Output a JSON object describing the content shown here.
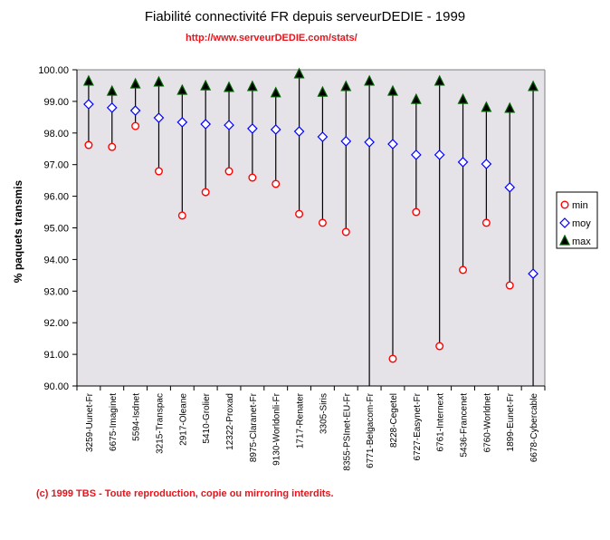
{
  "chart_data": {
    "type": "scatter",
    "title": "Fiabilité connectivité FR depuis serveurDEDIE - 1999",
    "subtitle": "http://www.serveurDEDIE.com/stats/",
    "footer": "(c) 1999 TBS - Toute reproduction, copie ou mirroring interdits.",
    "xlabel": "",
    "ylabel": "% paquets transmis",
    "ylim": [
      90,
      100
    ],
    "yticks": [
      "90.00",
      "91.00",
      "92.00",
      "93.00",
      "94.00",
      "95.00",
      "96.00",
      "97.00",
      "98.00",
      "99.00",
      "100.00"
    ],
    "grid": false,
    "legend_position": "right",
    "categories": [
      "3259-Uunet-Fr",
      "6675-Imaginet",
      "5594-Isdnet",
      "3215-Transpac",
      "2917-Oleane",
      "5410-Grolier",
      "12322-Proxad",
      "8975-Claranet-Fr",
      "9130-Worldonli-Fr",
      "1717-Renater",
      "3305-Siris",
      "8355-PSInet-EU-Fr",
      "6771-Belgacom-Fr",
      "8228-Cegetel",
      "6727-Easynet-Fr",
      "6761-Internext",
      "5436-Francenet",
      "6760-Worldnet",
      "1899-Eunet-Fr",
      "6678-Cybercable"
    ],
    "series": [
      {
        "name": "min",
        "color": "#ff0000",
        "marker": "circle",
        "values": [
          97.62,
          97.56,
          98.22,
          96.79,
          95.39,
          96.13,
          96.79,
          96.59,
          96.39,
          95.44,
          95.16,
          94.87,
          90.0,
          90.86,
          95.5,
          91.26,
          93.67,
          95.16,
          93.18,
          90.0
        ]
      },
      {
        "name": "moy",
        "color": "#0000ff",
        "marker": "diamond",
        "values": [
          98.91,
          98.8,
          98.71,
          98.48,
          98.34,
          98.28,
          98.25,
          98.14,
          98.11,
          98.05,
          97.88,
          97.74,
          97.71,
          97.65,
          97.31,
          97.31,
          97.08,
          97.02,
          96.28,
          93.55
        ]
      },
      {
        "name": "max",
        "color": "#006400",
        "marker": "triangle",
        "values": [
          99.63,
          99.31,
          99.54,
          99.6,
          99.34,
          99.48,
          99.43,
          99.46,
          99.26,
          99.86,
          99.28,
          99.46,
          99.63,
          99.31,
          99.05,
          99.63,
          99.05,
          98.8,
          98.77,
          99.46
        ]
      }
    ],
    "hidden_min": [
      false,
      false,
      false,
      false,
      false,
      false,
      false,
      false,
      false,
      false,
      false,
      false,
      true,
      false,
      false,
      false,
      false,
      false,
      false,
      true
    ]
  },
  "colors": {
    "plot_bg": "#e5e3e8",
    "accent": "#e8141c"
  }
}
